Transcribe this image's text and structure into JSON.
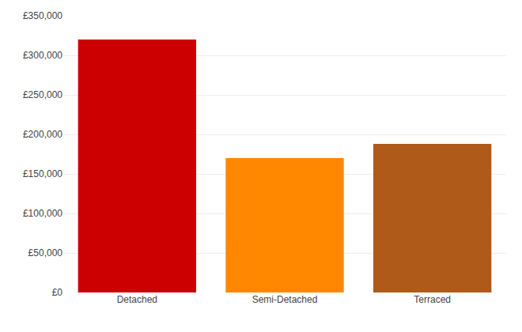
{
  "chart_data": {
    "type": "bar",
    "categories": [
      "Detached",
      "Semi-Detached",
      "Terraced"
    ],
    "values": [
      320000,
      170000,
      188000
    ],
    "colors": [
      "#cc0000",
      "#ff8800",
      "#b05a1a"
    ],
    "ylim": [
      0,
      350000
    ],
    "yticks": [
      {
        "value": 0,
        "label": "£0"
      },
      {
        "value": 50000,
        "label": "£50,000"
      },
      {
        "value": 100000,
        "label": "£100,000"
      },
      {
        "value": 150000,
        "label": "£150,000"
      },
      {
        "value": 200000,
        "label": "£200,000"
      },
      {
        "value": 250000,
        "label": "£250,000"
      },
      {
        "value": 300000,
        "label": "£300,000"
      },
      {
        "value": 350000,
        "label": "£350,000"
      }
    ],
    "grid": true
  }
}
